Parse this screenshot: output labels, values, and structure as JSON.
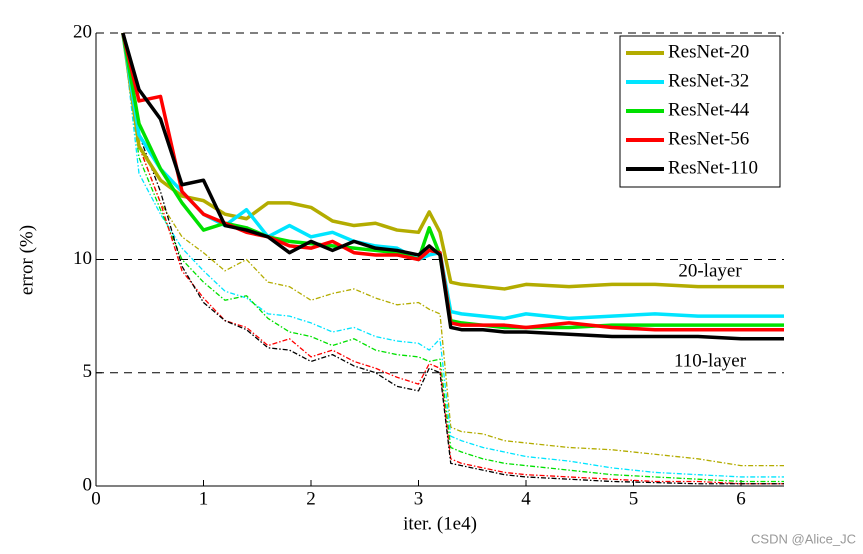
{
  "chart_data": {
    "type": "line",
    "xlabel": "iter. (1e4)",
    "ylabel": "error (%)",
    "xlim": [
      0,
      6.4
    ],
    "ylim": [
      0,
      20
    ],
    "xticks": [
      0,
      1,
      2,
      3,
      4,
      5,
      6
    ],
    "yticks": [
      0,
      5,
      10,
      20
    ],
    "grid": "dashed",
    "legend": "upper right",
    "x": [
      0.25,
      0.4,
      0.6,
      0.8,
      1.0,
      1.2,
      1.4,
      1.6,
      1.8,
      2.0,
      2.2,
      2.4,
      2.6,
      2.8,
      3.0,
      3.1,
      3.2,
      3.3,
      3.4,
      3.6,
      3.8,
      4.0,
      4.4,
      4.8,
      5.2,
      5.6,
      6.0,
      6.4
    ],
    "series": [
      {
        "name": "ResNet-20",
        "color": "#b3ac00",
        "style": "solid",
        "values": [
          20,
          15,
          13.5,
          12.8,
          12.6,
          12,
          11.8,
          12.5,
          12.5,
          12.3,
          11.7,
          11.5,
          11.6,
          11.3,
          11.2,
          12.1,
          11.2,
          9.0,
          8.9,
          8.8,
          8.7,
          8.9,
          8.8,
          8.9,
          8.9,
          8.8,
          8.8,
          8.8
        ]
      },
      {
        "name": "ResNet-32",
        "color": "#00e5ff",
        "style": "solid",
        "values": [
          20,
          15.5,
          14,
          13,
          12,
          11.5,
          12.2,
          11,
          11.5,
          11.0,
          11.2,
          10.8,
          10.6,
          10.5,
          10.0,
          10.2,
          10.3,
          7.7,
          7.6,
          7.5,
          7.4,
          7.6,
          7.4,
          7.5,
          7.6,
          7.5,
          7.5,
          7.5
        ]
      },
      {
        "name": "ResNet-44",
        "color": "#00e000",
        "style": "solid",
        "values": [
          20,
          16,
          14,
          12.5,
          11.3,
          11.6,
          11.4,
          11.0,
          10.8,
          10.7,
          10.6,
          10.5,
          10.4,
          10.3,
          10.0,
          11.4,
          10.2,
          7.3,
          7.2,
          7.1,
          7.0,
          7.0,
          7.0,
          7.1,
          7.1,
          7.1,
          7.1,
          7.1
        ]
      },
      {
        "name": "ResNet-56",
        "color": "#ff0000",
        "style": "solid",
        "values": [
          20,
          17,
          17.2,
          13,
          12,
          11.6,
          11.2,
          11.0,
          10.6,
          10.5,
          10.8,
          10.3,
          10.2,
          10.2,
          10.0,
          10.4,
          10.3,
          7.2,
          7.1,
          7.1,
          7.1,
          7.0,
          7.2,
          7.0,
          6.9,
          6.9,
          6.9,
          6.9
        ]
      },
      {
        "name": "ResNet-110",
        "color": "#000000",
        "style": "solid",
        "values": [
          20,
          17.5,
          16.2,
          13.3,
          13.5,
          11.5,
          11.3,
          11.0,
          10.3,
          10.8,
          10.4,
          10.8,
          10.5,
          10.4,
          10.2,
          10.6,
          10.2,
          7.0,
          6.9,
          6.9,
          6.8,
          6.8,
          6.7,
          6.6,
          6.6,
          6.6,
          6.5,
          6.5
        ]
      },
      {
        "color": "#b3ac00",
        "style": "dashed",
        "values": [
          20,
          15,
          12.5,
          11,
          10.3,
          9.5,
          10,
          9.0,
          8.8,
          8.2,
          8.5,
          8.7,
          8.3,
          8.0,
          8.1,
          7.8,
          7.6,
          2.6,
          2.4,
          2.3,
          2.0,
          1.9,
          1.7,
          1.6,
          1.4,
          1.2,
          0.9,
          0.9
        ]
      },
      {
        "color": "#00e5ff",
        "style": "dashed",
        "values": [
          20,
          13.8,
          12,
          10.5,
          9.5,
          8.6,
          8.3,
          7.6,
          7.5,
          7.2,
          6.8,
          7.0,
          6.6,
          6.4,
          6.3,
          6.0,
          6.5,
          2.2,
          2.0,
          1.7,
          1.5,
          1.3,
          1.1,
          0.8,
          0.6,
          0.5,
          0.4,
          0.4
        ]
      },
      {
        "color": "#00e000",
        "style": "dashed",
        "values": [
          20,
          14.5,
          12.2,
          10.0,
          9.0,
          8.2,
          8.4,
          7.4,
          6.8,
          6.6,
          6.2,
          6.5,
          6.0,
          5.8,
          5.7,
          5.5,
          5.6,
          1.7,
          1.5,
          1.2,
          1.0,
          0.9,
          0.7,
          0.5,
          0.4,
          0.3,
          0.2,
          0.2
        ]
      },
      {
        "color": "#ff0000",
        "style": "dashed",
        "values": [
          20,
          15,
          12.5,
          9.5,
          8.3,
          7.3,
          7.0,
          6.2,
          6.5,
          5.7,
          6.0,
          5.5,
          5.2,
          4.8,
          4.5,
          5.4,
          5.2,
          1.2,
          1.0,
          0.8,
          0.6,
          0.5,
          0.4,
          0.3,
          0.2,
          0.2,
          0.1,
          0.1
        ]
      },
      {
        "color": "#000000",
        "style": "dashed",
        "values": [
          20,
          15.5,
          13,
          9.7,
          8.1,
          7.3,
          6.9,
          6.1,
          6.0,
          5.5,
          5.8,
          5.3,
          5.0,
          4.4,
          4.2,
          5.2,
          5.0,
          1.0,
          0.9,
          0.7,
          0.5,
          0.4,
          0.3,
          0.2,
          0.15,
          0.1,
          0.1,
          0.1
        ]
      }
    ],
    "annotations": [
      "20-layer",
      "110-layer"
    ],
    "watermark": "CSDN @Alice_JC"
  }
}
